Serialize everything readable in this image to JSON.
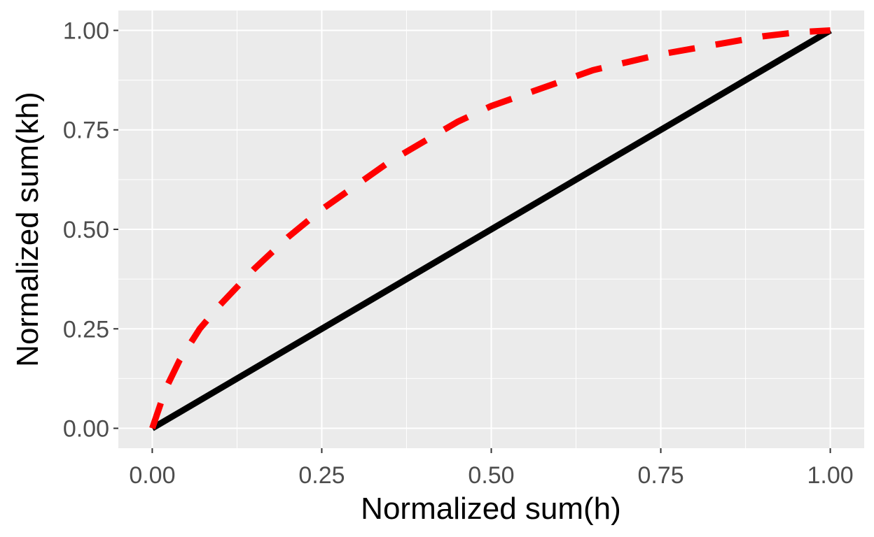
{
  "chart_data": {
    "type": "line",
    "xlabel": "Normalized sum(h)",
    "ylabel": "Normalized sum(kh)",
    "xlim": [
      -0.05,
      1.05
    ],
    "ylim": [
      -0.05,
      1.05
    ],
    "x_ticks": [
      0,
      0.25,
      0.5,
      0.75,
      1
    ],
    "y_ticks": [
      0,
      0.25,
      0.5,
      0.75,
      1
    ],
    "x_tick_labels": [
      "0.00",
      "0.25",
      "0.50",
      "0.75",
      "1.00"
    ],
    "y_tick_labels": [
      "0.00",
      "0.25",
      "0.50",
      "0.75",
      "1.00"
    ],
    "grid": true,
    "series": [
      {
        "line_style": "solid",
        "color": "#000000",
        "x": [
          0,
          1
        ],
        "y": [
          0,
          1
        ]
      },
      {
        "line_style": "dashed",
        "color": "#ff0000",
        "x": [
          0,
          0.02,
          0.04,
          0.07,
          0.1,
          0.15,
          0.2,
          0.25,
          0.3,
          0.35,
          0.4,
          0.45,
          0.5,
          0.55,
          0.6,
          0.65,
          0.7,
          0.75,
          0.8,
          0.85,
          0.9,
          0.95,
          1
        ],
        "y": [
          0,
          0.1,
          0.17,
          0.25,
          0.31,
          0.4,
          0.48,
          0.55,
          0.61,
          0.67,
          0.72,
          0.77,
          0.81,
          0.84,
          0.87,
          0.9,
          0.92,
          0.94,
          0.955,
          0.97,
          0.985,
          0.995,
          1
        ]
      }
    ]
  },
  "colors": {
    "panel_background": "#ebebeb",
    "grid_line": "#ffffff",
    "tick_mark": "#333333"
  }
}
